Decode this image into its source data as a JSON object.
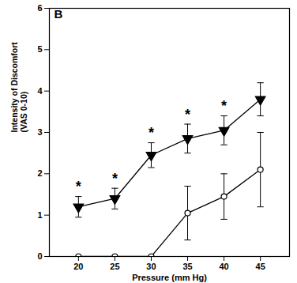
{
  "chart_data": {
    "type": "line",
    "title": "B",
    "x_label": "Pressure (mm Hg)",
    "y_label": "Intensity of Discomfort\n(VAS 0-10)",
    "xlim": [
      16,
      49
    ],
    "xticks": [
      20,
      25,
      30,
      35,
      40,
      45
    ],
    "ylim": [
      0,
      6
    ],
    "yticks": [
      0,
      1,
      2,
      3,
      4,
      5,
      6
    ],
    "grid": false,
    "x": [
      20,
      25,
      30,
      35,
      40,
      45
    ],
    "series": [
      {
        "color": "#000000",
        "marker": "triangle-down",
        "values": [
          1.2,
          1.4,
          2.45,
          2.85,
          3.05,
          3.8
        ],
        "errors": [
          0.25,
          0.25,
          0.3,
          0.35,
          0.35,
          0.4
        ]
      },
      {
        "color": "#000000",
        "marker": "circle-open",
        "values": [
          0,
          0,
          0,
          1.05,
          1.45,
          2.1
        ],
        "errors": [
          0,
          0,
          0,
          0.65,
          0.55,
          0.9
        ]
      }
    ],
    "annotations": [
      {
        "text": "*",
        "x": 20
      },
      {
        "text": "*",
        "x": 25
      },
      {
        "text": "*",
        "x": 30
      },
      {
        "text": "*",
        "x": 35
      },
      {
        "text": "*",
        "x": 40
      }
    ]
  }
}
